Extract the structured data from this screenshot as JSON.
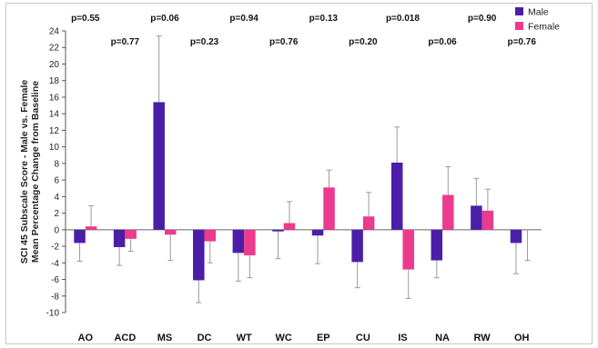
{
  "chart_data": {
    "type": "bar",
    "ylabel": [
      "SCI 45 Subscale Score - Male vs. Female",
      "Mean Percentage Change from Baseline"
    ],
    "ylim": [
      -10,
      24
    ],
    "ytick_step": 2,
    "grid": false,
    "legend_position": "top-right",
    "categories": [
      "AO",
      "ACD",
      "MS",
      "DC",
      "WT",
      "WC",
      "EP",
      "CU",
      "IS",
      "NA",
      "RW",
      "OH"
    ],
    "p_values": [
      "p=0.55",
      "p=0.77",
      "p=0.06",
      "p=0.23",
      "p=0.94",
      "p=0.76",
      "p=0.13",
      "p=0.20",
      "p=0.018",
      "p=0.06",
      "p=0.90",
      "p=0.76"
    ],
    "series": [
      {
        "name": "Male",
        "color": "#4b1ea8",
        "values": [
          -1.6,
          -2.1,
          15.4,
          -6.1,
          -2.8,
          -0.2,
          -0.7,
          -3.9,
          8.1,
          -3.7,
          2.9,
          -1.6
        ],
        "error_ends": [
          -3.8,
          -4.3,
          23.4,
          -8.8,
          -6.2,
          -3.5,
          -4.1,
          -7.0,
          12.4,
          -5.8,
          6.2,
          -5.3
        ]
      },
      {
        "name": "Female",
        "color": "#ec3a8e",
        "values": [
          0.4,
          -1.1,
          -0.6,
          -1.4,
          -3.1,
          0.8,
          5.1,
          1.6,
          -4.8,
          4.2,
          2.3,
          0.0
        ],
        "error_ends": [
          2.9,
          -2.6,
          -3.7,
          -4.0,
          -5.8,
          3.4,
          7.2,
          4.5,
          -8.3,
          7.6,
          4.9,
          -3.7
        ]
      }
    ]
  }
}
